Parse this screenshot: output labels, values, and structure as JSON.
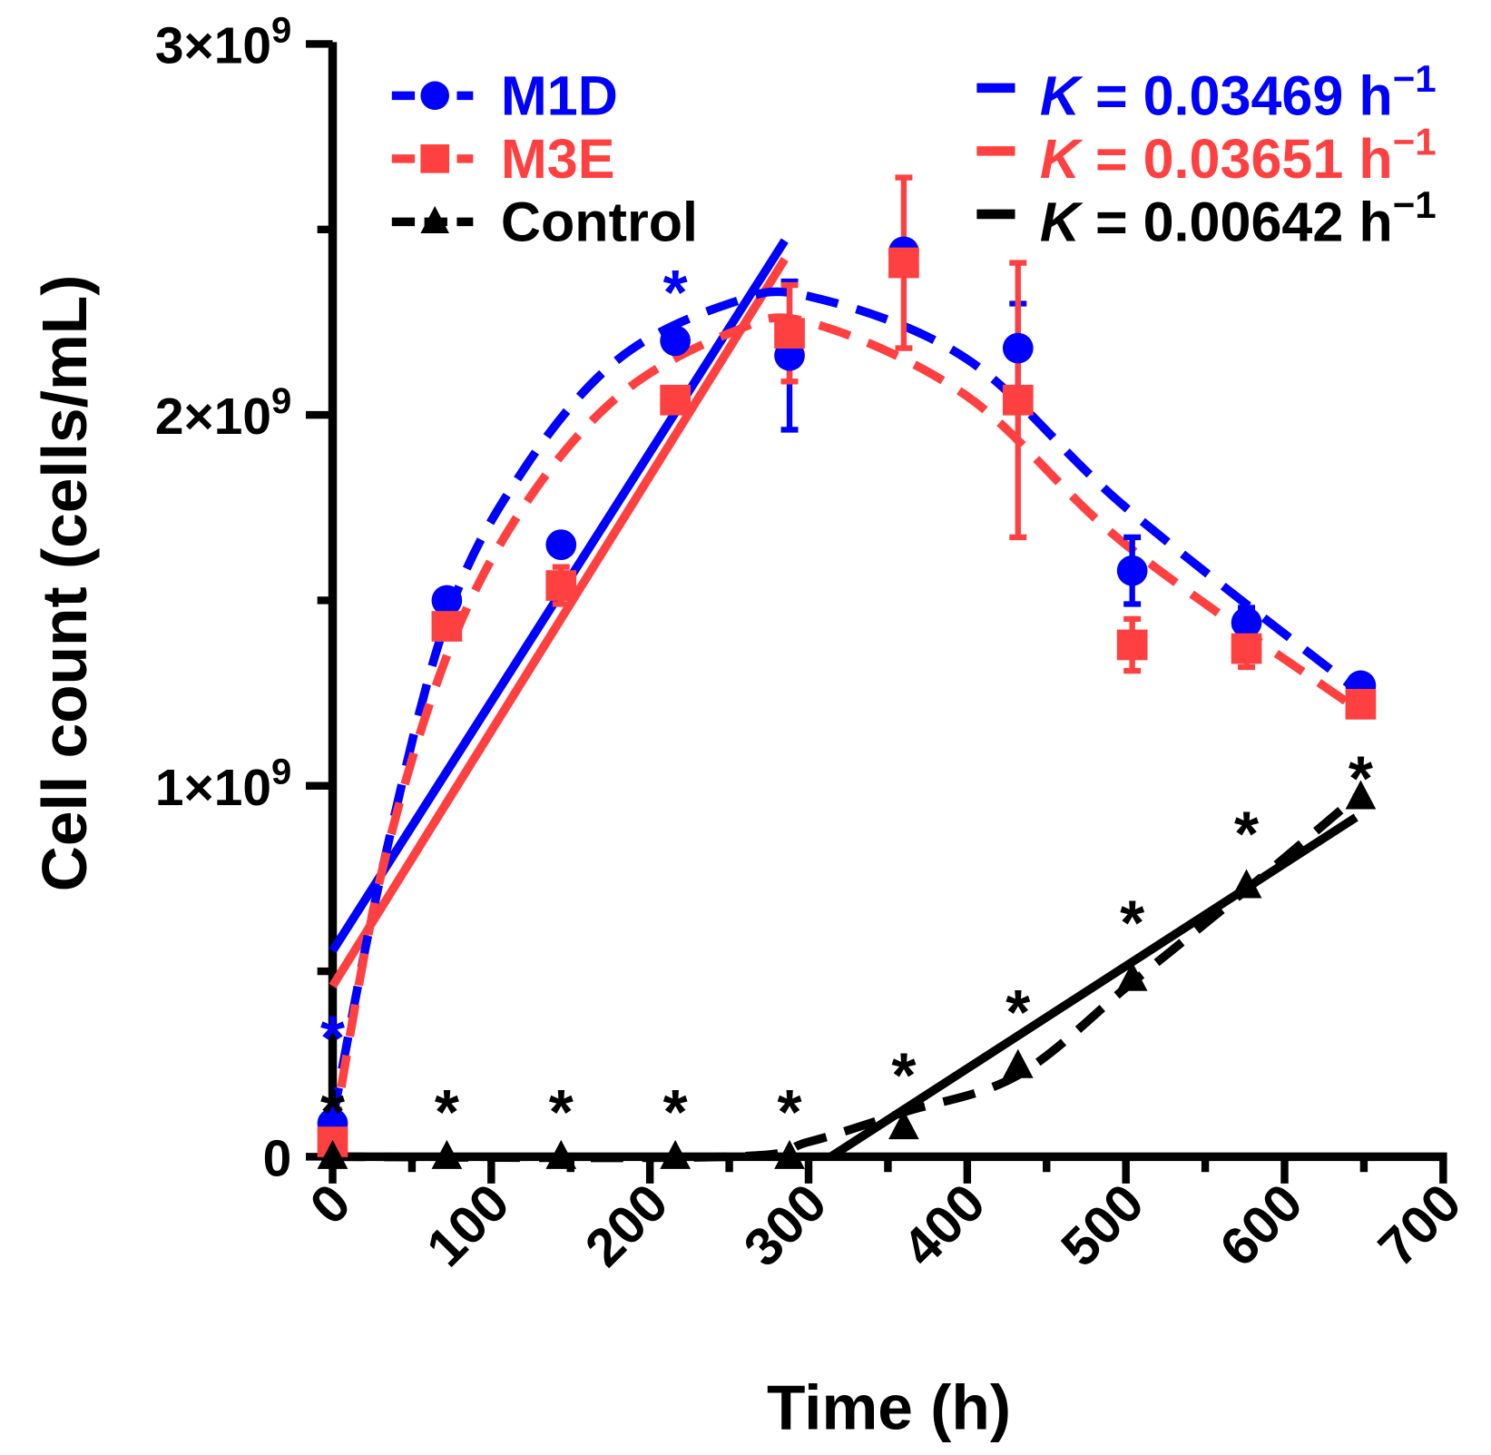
{
  "chart_data": {
    "type": "line",
    "xlabel": "Time (h)",
    "ylabel": "Cell count (cells/mL)",
    "xlim": [
      0,
      700
    ],
    "ylim": [
      0,
      3000000000.0
    ],
    "x_ticks": [
      "0",
      "100",
      "200",
      "300",
      "400",
      "500",
      "600",
      "700"
    ],
    "y_ticks": [
      {
        "value": 0,
        "base": "0",
        "exp": ""
      },
      {
        "value": 1000000000.0,
        "base": "1×10",
        "exp": "9"
      },
      {
        "value": 2000000000.0,
        "base": "2×10",
        "exp": "9"
      },
      {
        "value": 3000000000.0,
        "base": "3×10",
        "exp": "9"
      }
    ],
    "x": [
      0,
      72,
      144,
      216,
      288,
      360,
      432,
      504,
      576,
      648
    ],
    "series": [
      {
        "name": "M1D",
        "color": "#0000ff",
        "marker": "circle",
        "values": [
          90000000.0,
          1500000000.0,
          1650000000.0,
          2200000000.0,
          2160000000.0,
          2440000000.0,
          2180000000.0,
          1580000000.0,
          1440000000.0,
          1270000000.0
        ],
        "errors": [
          0,
          0,
          0,
          0,
          200000000.0,
          0,
          120000000.0,
          90000000.0,
          40000000.0,
          0
        ],
        "trend": [
          [
            0,
            100000000.0
          ],
          [
            30,
            750000000.0
          ],
          [
            72,
            1450000000.0
          ],
          [
            120,
            1850000000.0
          ],
          [
            180,
            2150000000.0
          ],
          [
            250,
            2300000000.0
          ],
          [
            300,
            2320000000.0
          ],
          [
            400,
            2150000000.0
          ],
          [
            500,
            1750000000.0
          ],
          [
            648,
            1250000000.0
          ]
        ],
        "fit": {
          "label_prefix": "K",
          "label_value": " = 0.03469 h",
          "label_exp": "−1",
          "from": [
            0,
            555000000.0
          ],
          "to": [
            285,
            2470000000.0
          ]
        },
        "significance": [
          [
            0,
            370000000.0
          ],
          [
            216,
            2380000000.0
          ]
        ]
      },
      {
        "name": "M3E",
        "color": "#ff4040",
        "marker": "square",
        "values": [
          40000000.0,
          1430000000.0,
          1540000000.0,
          2040000000.0,
          2220000000.0,
          2410000000.0,
          2040000000.0,
          1380000000.0,
          1370000000.0,
          1220000000.0
        ],
        "errors": [
          0,
          30000000.0,
          50000000.0,
          0,
          130000000.0,
          230000000.0,
          370000000.0,
          70000000.0,
          50000000.0,
          0
        ],
        "trend": [
          [
            0,
            50000000.0
          ],
          [
            30,
            750000000.0
          ],
          [
            72,
            1350000000.0
          ],
          [
            120,
            1750000000.0
          ],
          [
            180,
            2050000000.0
          ],
          [
            250,
            2220000000.0
          ],
          [
            300,
            2250000000.0
          ],
          [
            400,
            2050000000.0
          ],
          [
            500,
            1650000000.0
          ],
          [
            648,
            1200000000.0
          ]
        ],
        "fit": {
          "label_prefix": "K",
          "label_value": " = 0.03651 h",
          "label_exp": "−1",
          "from": [
            0,
            460000000.0
          ],
          "to": [
            285,
            2420000000.0
          ]
        },
        "significance": []
      },
      {
        "name": "Control",
        "color": "#000000",
        "marker": "triangle",
        "values": [
          0,
          0,
          0,
          0,
          0,
          80000000.0,
          245000000.0,
          480000000.0,
          730000000.0,
          970000000.0
        ],
        "errors": [
          0,
          0,
          0,
          0,
          0,
          0,
          0,
          0,
          0,
          0
        ],
        "trend": [
          [
            0,
            0
          ],
          [
            250,
            0
          ],
          [
            300,
            40000000.0
          ],
          [
            360,
            120000000.0
          ],
          [
            432,
            220000000.0
          ],
          [
            504,
            470000000.0
          ],
          [
            576,
            720000000.0
          ],
          [
            648,
            980000000.0
          ]
        ],
        "fit": {
          "label_prefix": "K",
          "label_value": " = 0.00642 h",
          "label_exp": "−1",
          "from": [
            314,
            0
          ],
          "to": [
            645,
            915000000.0
          ]
        },
        "significance": [
          [
            0,
            170000000.0
          ],
          [
            72,
            170000000.0
          ],
          [
            144,
            170000000.0
          ],
          [
            216,
            170000000.0
          ],
          [
            288,
            170000000.0
          ],
          [
            360,
            270000000.0
          ],
          [
            432,
            440000000.0
          ],
          [
            504,
            680000000.0
          ],
          [
            576,
            920000000.0
          ],
          [
            648,
            1070000000.0
          ]
        ]
      }
    ],
    "significance_symbol": "*",
    "legend_placement": "top"
  }
}
